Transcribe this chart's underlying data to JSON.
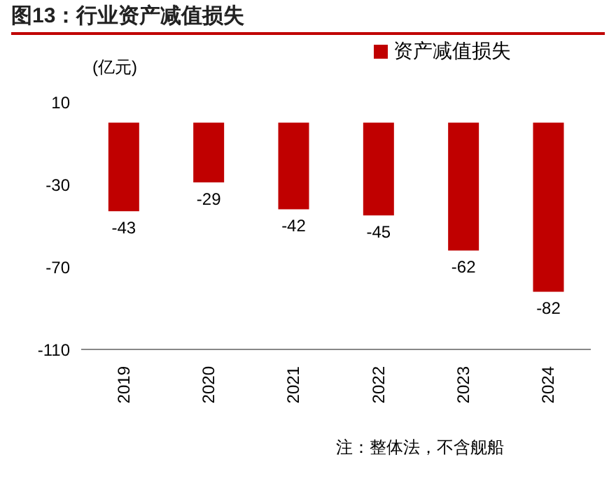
{
  "chart_data": {
    "type": "bar",
    "title": "图13：行业资产减值损失",
    "ylabel": "(亿元)",
    "categories": [
      "2019",
      "2020",
      "2021",
      "2022",
      "2023",
      "2024"
    ],
    "series": [
      {
        "name": "资产减值损失",
        "color": "#c00000",
        "values": [
          -43,
          -29,
          -42,
          -45,
          -62,
          -82
        ]
      }
    ],
    "ylim": [
      -110,
      10
    ],
    "yticks": [
      10,
      -30,
      -70,
      -110
    ],
    "grid": false,
    "legend": "top",
    "data_labels": true,
    "annotations": [
      "注：整体法，不含舰船"
    ]
  }
}
